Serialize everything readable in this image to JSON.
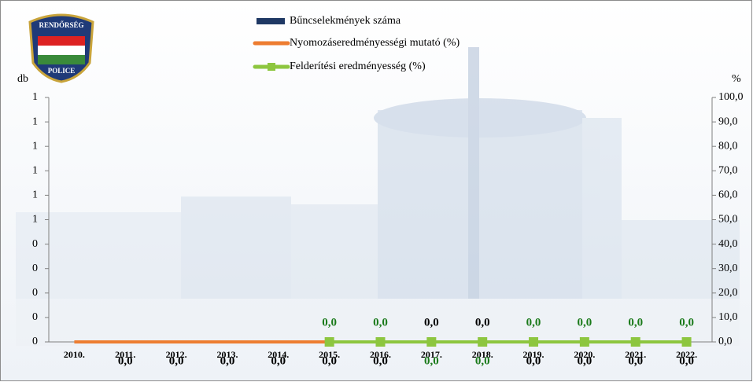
{
  "logo": {
    "top": "RENDŐRSÉG",
    "bottom": "POLICE"
  },
  "chart_data": {
    "type": "bar_line",
    "ylabel": "db",
    "y2label": "%",
    "categories": [
      "2010.",
      "2011.",
      "2012.",
      "2013.",
      "2014.",
      "2015.",
      "2016.",
      "2017.",
      "2018.",
      "2019.",
      "2020.",
      "2021.",
      "2022."
    ],
    "series": [
      {
        "name": "Bűncselekmények száma",
        "type": "bar",
        "color": "#1f3864",
        "values": [
          0,
          0,
          0,
          0,
          0,
          0,
          0,
          0,
          0,
          0,
          0,
          0,
          0
        ]
      },
      {
        "name": "Nyomozáseredményességi mutató (%)",
        "type": "line",
        "axis": "y2",
        "color": "#ed7d31",
        "label_color": "#000000",
        "values": [
          0,
          0,
          0,
          0,
          0,
          0,
          0,
          0,
          0,
          0,
          0,
          0,
          0
        ],
        "value_labels": [
          null,
          "0,0",
          "0,0",
          "0,0",
          "0,0",
          "0,0",
          "0,0",
          "0,0",
          "0,0",
          "0,0",
          "0,0",
          "0,0",
          "0,0"
        ]
      },
      {
        "name": "Felderítési eredményesség (%)",
        "type": "line",
        "axis": "y2",
        "color": "#8dc63f",
        "label_color": "#1a7a1a",
        "marker": "square",
        "values": [
          null,
          null,
          null,
          null,
          null,
          0,
          0,
          0,
          0,
          0,
          0,
          0,
          0
        ],
        "value_labels": [
          null,
          null,
          null,
          null,
          null,
          "0,0",
          "0,0",
          "0,0",
          "0,0",
          "0,0",
          "0,0",
          "0,0",
          "0,0"
        ]
      }
    ],
    "ylim": [
      0,
      1
    ],
    "yticks": [
      0,
      {
        "value": 0.1,
        "label": "0"
      },
      {
        "value": 0.2,
        "label": "0"
      },
      {
        "value": 0.3,
        "label": "0"
      },
      {
        "value": 0.4,
        "label": "0"
      },
      {
        "value": 0.5,
        "label": "1"
      },
      {
        "value": 0.6,
        "label": "1"
      },
      {
        "value": 0.7,
        "label": "1"
      },
      {
        "value": 0.8,
        "label": "1"
      },
      {
        "value": 0.9,
        "label": "1"
      },
      1
    ],
    "y2lim": [
      0,
      100
    ],
    "y2ticks": [
      {
        "value": 0,
        "label": "0,0"
      },
      {
        "value": 10,
        "label": "10,0"
      },
      {
        "value": 20,
        "label": "20,0"
      },
      {
        "value": 30,
        "label": "30,0"
      },
      {
        "value": 40,
        "label": "40,0"
      },
      {
        "value": 50,
        "label": "50,0"
      },
      {
        "value": 60,
        "label": "60,0"
      },
      {
        "value": 70,
        "label": "70,0"
      },
      {
        "value": 80,
        "label": "80,0"
      },
      {
        "value": 90,
        "label": "90,0"
      },
      {
        "value": 100,
        "label": "100,0"
      }
    ],
    "grid": false,
    "legend": "top"
  }
}
